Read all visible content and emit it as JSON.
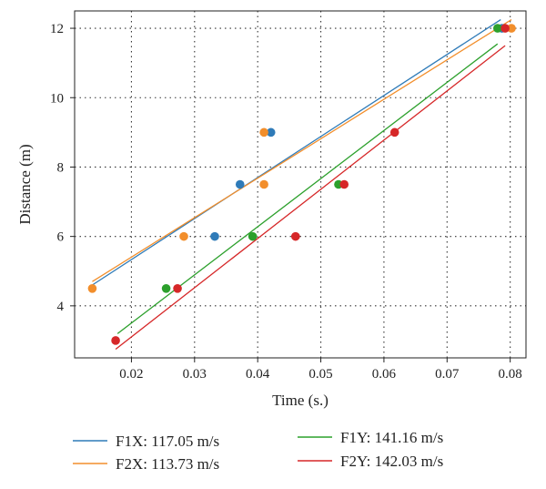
{
  "chart_data": {
    "type": "scatter",
    "xlabel": "Time (s.)",
    "ylabel": "Distance (m)",
    "xlim": [
      0.011,
      0.0825
    ],
    "ylim": [
      2.5,
      12.5
    ],
    "xticks": [
      0.02,
      0.03,
      0.04,
      0.05,
      0.06,
      0.07,
      0.08
    ],
    "yticks": [
      4,
      6,
      8,
      10,
      12
    ],
    "xtick_labels": [
      "0.02",
      "0.03",
      "0.04",
      "0.05",
      "0.06",
      "0.07",
      "0.08"
    ],
    "ytick_labels": [
      "4",
      "6",
      "8",
      "10",
      "12"
    ],
    "grid": "dotted",
    "legend_position": "bottom",
    "series": [
      {
        "name": "F1X: 117.05 m/s",
        "color": "#2f7bb8",
        "points": [
          [
            0.0332,
            6.0
          ],
          [
            0.0372,
            7.5
          ],
          [
            0.0421,
            9.0
          ],
          [
            0.0787,
            12.0
          ]
        ],
        "fit": [
          [
            0.0138,
            4.6
          ],
          [
            0.0785,
            12.25
          ]
        ]
      },
      {
        "name": "F2X: 113.73 m/s",
        "color": "#f28e2b",
        "points": [
          [
            0.0138,
            4.5
          ],
          [
            0.0283,
            6.0
          ],
          [
            0.041,
            7.5
          ],
          [
            0.041,
            9.0
          ],
          [
            0.0802,
            12.0
          ]
        ],
        "fit": [
          [
            0.0138,
            4.7
          ],
          [
            0.0802,
            12.25
          ]
        ]
      },
      {
        "name": "F1Y: 141.16 m/s",
        "color": "#2ca02c",
        "points": [
          [
            0.0255,
            4.5
          ],
          [
            0.0392,
            6.0
          ],
          [
            0.0528,
            7.5
          ],
          [
            0.078,
            12.0
          ]
        ],
        "fit": [
          [
            0.0178,
            3.2
          ],
          [
            0.078,
            11.55
          ]
        ]
      },
      {
        "name": "F2Y: 142.03 m/s",
        "color": "#d62728",
        "points": [
          [
            0.0175,
            3.0
          ],
          [
            0.0273,
            4.5
          ],
          [
            0.046,
            6.0
          ],
          [
            0.0537,
            7.5
          ],
          [
            0.0617,
            9.0
          ],
          [
            0.0792,
            12.0
          ]
        ],
        "fit": [
          [
            0.0175,
            2.75
          ],
          [
            0.0792,
            11.5
          ]
        ]
      }
    ]
  }
}
